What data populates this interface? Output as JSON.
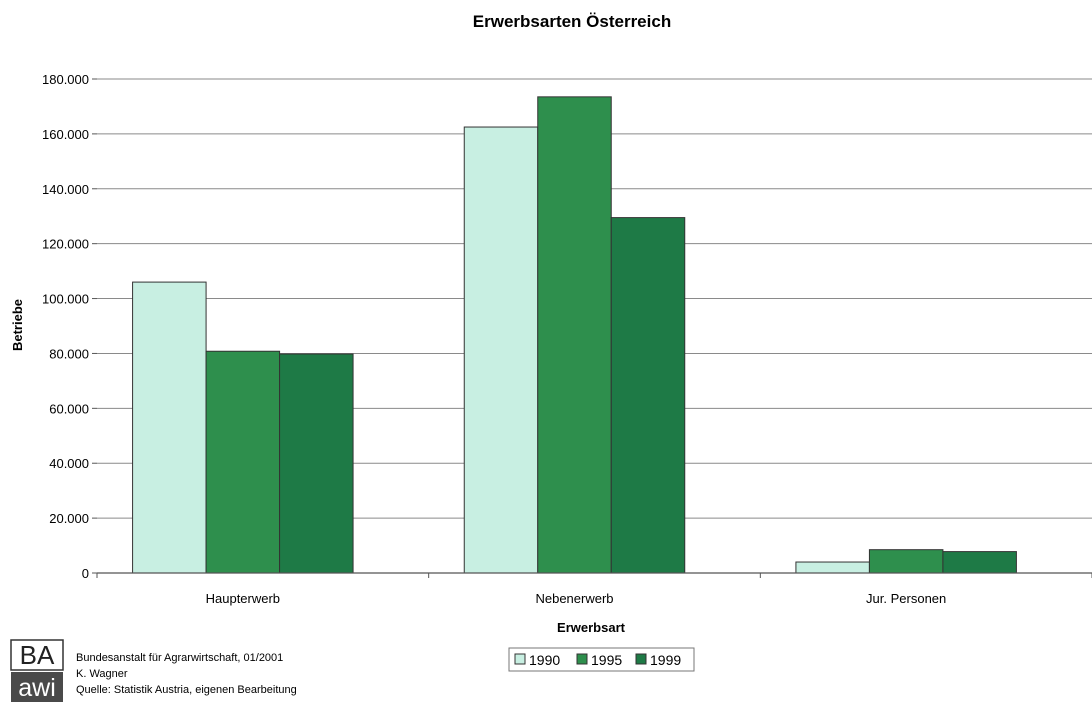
{
  "chart_data": {
    "type": "bar",
    "title": "Erwerbsarten Österreich",
    "xlabel": "Erwerbsart",
    "ylabel": "Betriebe",
    "categories": [
      "Haupterwerb",
      "Nebenerwerb",
      "Jur. Personen"
    ],
    "series": [
      {
        "name": "1990",
        "values": [
          106000,
          162500,
          4000
        ],
        "color": "#c8efe2"
      },
      {
        "name": "1995",
        "values": [
          80800,
          173500,
          8500
        ],
        "color": "#2e8f4d"
      },
      {
        "name": "1999",
        "values": [
          79800,
          129500,
          7800
        ],
        "color": "#1e7a46"
      }
    ],
    "ylim": [
      0,
      180000
    ],
    "yticks": [
      0,
      20000,
      40000,
      60000,
      80000,
      100000,
      120000,
      140000,
      160000,
      180000
    ],
    "ytick_labels": [
      "0",
      "20.000",
      "40.000",
      "60.000",
      "80.000",
      "100.000",
      "120.000",
      "140.000",
      "160.000",
      "180.000"
    ],
    "grid": true,
    "legend_position": "bottom-center"
  },
  "legend_labels": [
    "1990",
    "1995",
    "1999"
  ],
  "footer": {
    "logo_top": "BA",
    "logo_bottom": "awi",
    "line1": "Bundesanstalt für Agrarwirtschaft, 01/2001",
    "line2": "K. Wagner",
    "line3": "Quelle: Statistik Austria, eigenen Bearbeitung"
  }
}
